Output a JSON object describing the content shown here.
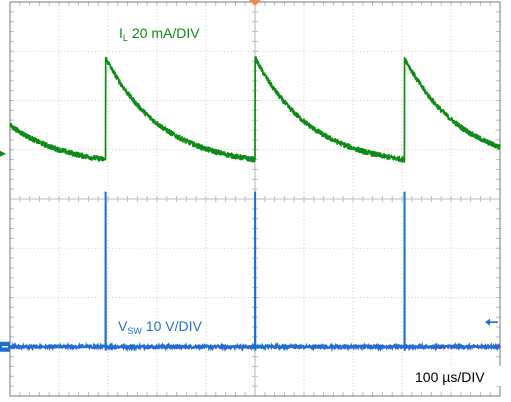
{
  "chart_data": {
    "type": "line",
    "grid": true,
    "divisions": {
      "x": 10,
      "y": 8
    },
    "timebase": "100 µs/DIV",
    "series": [
      {
        "name": "I",
        "name_subscript": "L",
        "scale": "20 mA/DIV",
        "color": "#0e8a16",
        "period_div": 3.05,
        "first_reset_div": 1.95,
        "peak_div": 2.87,
        "valley_div": 0.8,
        "decay_tau_div": 1.15
      },
      {
        "name": "V",
        "name_subscript": "SW",
        "scale": "10 V/DIV",
        "color": "#1f6fd0",
        "baseline_div": -3.0,
        "spike_times_div": [
          1.95,
          5.0,
          8.05
        ],
        "spike_height_div": 3.15
      }
    ],
    "secondary_trace_color": "#7a22b8",
    "markers": {
      "trigger_color": "#f08a4b",
      "level_arrow_color": "#1f6fd0",
      "ground_marker_color": "#0e8a16"
    },
    "colors": {
      "grid": "#bdbdbd",
      "frame": "#777777",
      "background": "#ffffff"
    }
  }
}
